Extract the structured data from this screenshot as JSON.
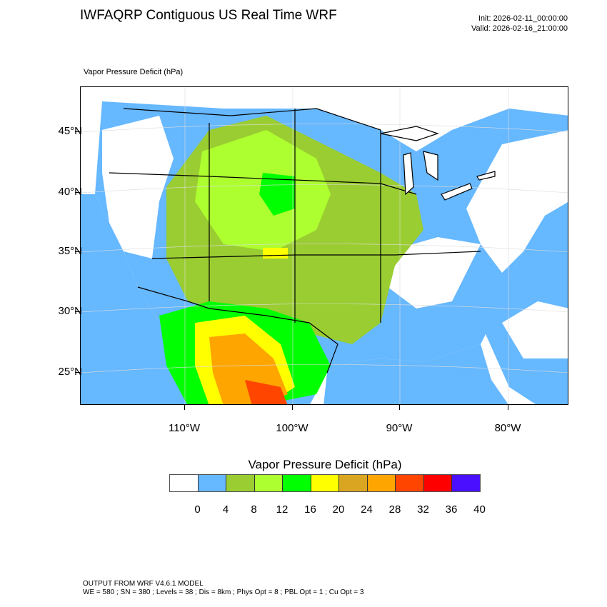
{
  "header": {
    "title": "IWFAQRP Contiguous US Real Time WRF",
    "init": "Init: 2026-02-11_00:00:00",
    "valid": "Valid: 2026-02-16_21:00:00",
    "subtitle": "Vapor Pressure Deficit   (hPa)"
  },
  "map": {
    "lat_labels": [
      "45°N",
      "40°N",
      "35°N",
      "30°N",
      "25°N"
    ],
    "lon_labels": [
      "110°W",
      "100°W",
      "90°W",
      "80°W"
    ],
    "extent_lat": [
      22,
      48
    ],
    "extent_lon": [
      -119,
      -74.5
    ]
  },
  "colorbar": {
    "title": "Vapor Pressure Deficit  (hPa)",
    "colors": [
      "#ffffff",
      "#ffffff",
      "#66b8ff",
      "#9acd32",
      "#adff2f",
      "#00ff00",
      "#ffff00",
      "#daa520",
      "#ffa500",
      "#ff4500",
      "#ff0000",
      "#4b0fff"
    ],
    "labels": [
      "0",
      "4",
      "8",
      "12",
      "16",
      "20",
      "24",
      "28",
      "32",
      "36",
      "40"
    ]
  },
  "footer": {
    "line1": "OUTPUT FROM WRF V4.6.1 MODEL",
    "line2": "WE = 580 ; SN = 380 ; Levels = 38 ; Dis = 8km ; Phys Opt = 8 ; PBL Opt = 1 ; Cu Opt = 3"
  }
}
